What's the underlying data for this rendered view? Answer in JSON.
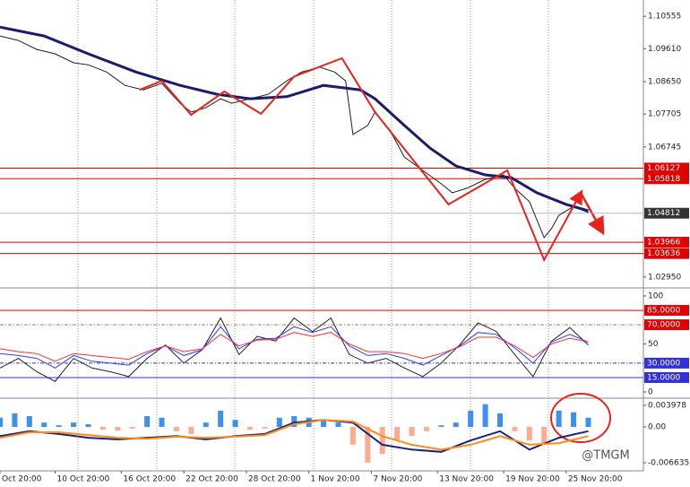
{
  "chart_data": [
    {
      "type": "line",
      "xlim": [
        0,
        175
      ],
      "ylim": [
        1.0266,
        1.1103
      ],
      "yticks": [
        1.10555,
        {
          "value": 1.0961,
          "label": "1.09610"
        },
        {
          "value": 1.0865,
          "label": "1.08650"
        },
        1.07705,
        1.06745,
        {
          "value": 1.0295,
          "label": "1.02950"
        }
      ],
      "levels": [
        {
          "value": 1.06127,
          "color": "#e00000",
          "box": "#e00000"
        },
        {
          "value": 1.05818,
          "color": "#e00000",
          "box": "#e00000"
        },
        {
          "value": 1.04812,
          "color": "#a9b4f0",
          "box": "#333333"
        },
        {
          "value": 1.03966,
          "color": "#e00000",
          "box": "#e00000"
        },
        {
          "value": 1.03636,
          "color": "#e00000",
          "box": "#e00000"
        }
      ],
      "series": [
        {
          "color": "#1f1f1f",
          "width": 1,
          "x": [
            0,
            5,
            10,
            15,
            20,
            24,
            29,
            34,
            39,
            44,
            49,
            52,
            56,
            60,
            63,
            68,
            73,
            78,
            82,
            87,
            91,
            94,
            96,
            100,
            102,
            106,
            110,
            115,
            120,
            123,
            127,
            132,
            137,
            140,
            144,
            148,
            150,
            152,
            156,
            160
          ],
          "values": [
            1.0998,
            1.0985,
            1.0959,
            1.0946,
            1.092,
            1.0914,
            1.0893,
            1.0854,
            1.0841,
            1.086,
            1.0802,
            1.0776,
            1.0789,
            1.0815,
            1.0802,
            1.0815,
            1.0828,
            1.0867,
            1.0893,
            1.0907,
            1.0893,
            1.0867,
            1.0711,
            1.0737,
            1.0776,
            1.0724,
            1.0645,
            1.0606,
            1.0567,
            1.0541,
            1.0554,
            1.058,
            1.0593,
            1.0554,
            1.0515,
            1.041,
            1.0436,
            1.0475,
            1.0501,
            1.0483
          ]
        },
        {
          "color": "#1c1c6b",
          "width": 3,
          "x": [
            0,
            12,
            24,
            37,
            49,
            59,
            68,
            78,
            88,
            98,
            102,
            110,
            117,
            124,
            132,
            139,
            146,
            154,
            160
          ],
          "values": [
            1.1024,
            1.0998,
            1.0946,
            1.0893,
            1.0854,
            1.0828,
            1.0815,
            1.0821,
            1.0854,
            1.0841,
            1.0815,
            1.0737,
            1.0671,
            1.0619,
            1.0593,
            1.0585,
            1.0541,
            1.0507,
            1.0488
          ]
        }
      ],
      "zigzag": {
        "color": "#e8231e",
        "x": [
          38,
          44,
          52,
          61,
          71,
          80,
          93,
          102,
          122,
          138,
          148,
          158
        ],
        "values": [
          1.0841,
          1.0867,
          1.0768,
          1.0836,
          1.0771,
          1.088,
          1.0933,
          1.0776,
          1.0507,
          1.0606,
          1.0345,
          1.0541
        ]
      }
    },
    {
      "type": "line",
      "xlim": [
        0,
        175
      ],
      "ylim": [
        -5.6,
        107.5
      ],
      "yticks": [
        100,
        50,
        0
      ],
      "levels": [
        {
          "value": 85,
          "label": "85.0000",
          "color": "#e00000",
          "box": "#e00000",
          "dash": "none"
        },
        {
          "value": 70,
          "label": "70.0000",
          "color": "#e06060",
          "box": "#e00000",
          "dash": "4 2 1 2"
        },
        {
          "value": 30,
          "label": "30.0000",
          "color": "#3030e0",
          "box": "#3030e0",
          "dash": "4 2 1 2"
        },
        {
          "value": 15,
          "label": "15.0000",
          "color": "#3030e0",
          "box": "#3030e0",
          "dash": "none"
        }
      ],
      "series": [
        {
          "color": "#1f1f1f",
          "width": 1,
          "x": [
            0,
            5,
            10,
            15,
            20,
            25,
            30,
            35,
            40,
            45,
            50,
            55,
            60,
            65,
            70,
            75,
            80,
            85,
            90,
            95,
            100,
            105,
            110,
            115,
            120,
            125,
            130,
            135,
            140,
            145,
            150,
            155,
            160
          ],
          "values": [
            25,
            35,
            21,
            11,
            35,
            25,
            21,
            16,
            35,
            49,
            30,
            44,
            77,
            39,
            58,
            53,
            77,
            63,
            77,
            39,
            30,
            35,
            25,
            16,
            30,
            49,
            72,
            63,
            39,
            16,
            53,
            67,
            49
          ]
        },
        {
          "color": "#2a3bff",
          "width": 1,
          "x": [
            0,
            5,
            10,
            15,
            20,
            25,
            30,
            35,
            40,
            45,
            50,
            55,
            60,
            65,
            70,
            75,
            80,
            85,
            90,
            95,
            100,
            105,
            110,
            115,
            120,
            125,
            130,
            135,
            140,
            145,
            150,
            155,
            160
          ],
          "values": [
            40,
            38,
            35,
            25,
            38,
            32,
            30,
            28,
            40,
            48,
            38,
            44,
            68,
            45,
            55,
            56,
            68,
            62,
            68,
            48,
            38,
            40,
            35,
            28,
            38,
            48,
            62,
            60,
            46,
            30,
            52,
            60,
            52
          ]
        },
        {
          "color": "#ff3030",
          "width": 1,
          "x": [
            0,
            5,
            10,
            15,
            20,
            25,
            30,
            35,
            40,
            45,
            50,
            55,
            60,
            65,
            70,
            75,
            80,
            85,
            90,
            95,
            100,
            105,
            110,
            115,
            120,
            125,
            130,
            135,
            140,
            145,
            150,
            155,
            160
          ],
          "values": [
            45,
            42,
            40,
            32,
            40,
            38,
            36,
            34,
            42,
            48,
            42,
            45,
            60,
            48,
            54,
            55,
            62,
            58,
            62,
            50,
            42,
            42,
            40,
            35,
            40,
            47,
            57,
            57,
            48,
            36,
            50,
            56,
            52
          ]
        }
      ]
    },
    {
      "type": "bar",
      "xlim": [
        0,
        175
      ],
      "ylim": [
        -0.00812,
        0.00514
      ],
      "yticks": [
        0.003978,
        {
          "value": 0,
          "label": "0.00"
        },
        -0.006635
      ],
      "positive_color": "#3d8ff0",
      "negative_color": "#ffab91",
      "x": [
        0,
        4,
        8,
        12,
        16,
        20,
        24,
        28,
        32,
        36,
        40,
        44,
        48,
        52,
        56,
        60,
        64,
        68,
        72,
        76,
        80,
        84,
        88,
        92,
        96,
        100,
        104,
        108,
        112,
        116,
        120,
        124,
        128,
        132,
        136,
        140,
        144,
        148,
        152,
        156,
        160
      ],
      "values": [
        0.0017,
        0.0025,
        0.002,
        0.0008,
        0.0003,
        0.0008,
        0.0005,
        -0.0005,
        -0.0007,
        -0.0003,
        0.002,
        0.0017,
        -0.0008,
        -0.0013,
        0.0008,
        0.003,
        0.0013,
        -0.0005,
        -0.0003,
        0.0017,
        0.002,
        0.0017,
        0.0013,
        0.0008,
        -0.0033,
        -0.0066,
        -0.005,
        -0.0025,
        -0.0017,
        -0.0008,
        0.0003,
        0.0008,
        0.003,
        0.0042,
        0.0025,
        -0.0008,
        -0.0025,
        -0.0033,
        0.003,
        0.0027,
        0.0017
      ],
      "lines": [
        {
          "color": "#1a237e",
          "width": 2,
          "x": [
            0,
            8,
            16,
            24,
            32,
            40,
            48,
            56,
            64,
            72,
            80,
            88,
            96,
            104,
            112,
            120,
            128,
            136,
            144,
            152,
            160
          ],
          "values": [
            -0.0017,
            -0.0008,
            -0.0013,
            -0.002,
            -0.0023,
            -0.002,
            -0.0017,
            -0.0023,
            -0.0017,
            -0.0013,
            0.0008,
            0.0013,
            0.0008,
            -0.0033,
            -0.0042,
            -0.0046,
            -0.0025,
            -0.0008,
            -0.0042,
            -0.002,
            -0.0008
          ]
        },
        {
          "color": "#ff8c1a",
          "width": 2,
          "x": [
            0,
            8,
            16,
            24,
            32,
            40,
            48,
            56,
            64,
            72,
            80,
            88,
            96,
            104,
            112,
            120,
            128,
            136,
            144,
            152,
            160
          ],
          "values": [
            -0.002,
            -0.001,
            -0.001,
            -0.0015,
            -0.002,
            -0.0022,
            -0.0018,
            -0.002,
            -0.0018,
            -0.0015,
            0.0005,
            0.0013,
            0.001,
            -0.0017,
            -0.0033,
            -0.0042,
            -0.0033,
            -0.0017,
            -0.0033,
            -0.003,
            -0.0017
          ]
        }
      ],
      "xticks": [
        {
          "value": 0,
          "label": "Oct 20:00"
        },
        {
          "value": 15,
          "label": "10 Oct 20:00"
        },
        {
          "value": 33,
          "label": "16 Oct 20:00"
        },
        {
          "value": 50,
          "label": "22 Oct 20:00"
        },
        {
          "value": 67,
          "label": "28 Oct 20:00"
        },
        {
          "value": 84,
          "label": "1 Nov 20:00"
        },
        {
          "value": 101,
          "label": "7 Nov 20:00"
        },
        {
          "value": 119,
          "label": "13 Nov 20:00"
        },
        {
          "value": 137,
          "label": "19 Nov 20:00"
        },
        {
          "value": 154,
          "label": "25 Nov 20:00"
        }
      ]
    }
  ],
  "watermark": "@TMGM"
}
